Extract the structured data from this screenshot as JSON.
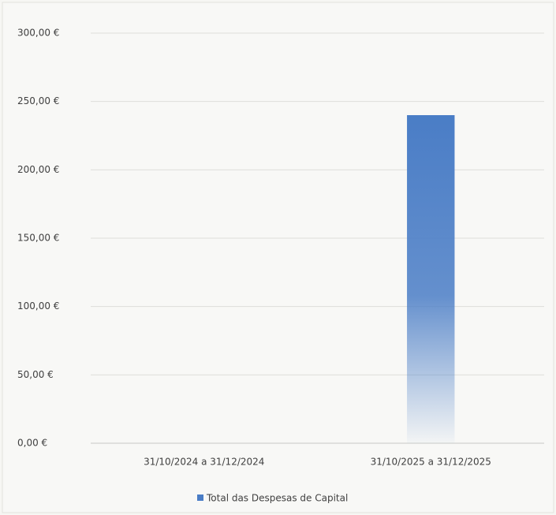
{
  "chart_data": {
    "type": "bar",
    "categories": [
      "31/10/2024 a 31/12/2024",
      "31/10/2025 a 31/12/2025"
    ],
    "series": [
      {
        "name": "Total das Despesas de Capital",
        "color": "#4a7dc6",
        "values": [
          0,
          240
        ]
      }
    ],
    "ylim": [
      0,
      300
    ],
    "yticks": [
      {
        "value": 0,
        "label": "0,00 €"
      },
      {
        "value": 50,
        "label": "50,00 €"
      },
      {
        "value": 100,
        "label": "100,00 €"
      },
      {
        "value": 150,
        "label": "150,00 €"
      },
      {
        "value": 200,
        "label": "200,00 €"
      },
      {
        "value": 250,
        "label": "250,00 €"
      },
      {
        "value": 300,
        "label": "300,00 €"
      }
    ],
    "grid": true,
    "legend": "bottom"
  }
}
